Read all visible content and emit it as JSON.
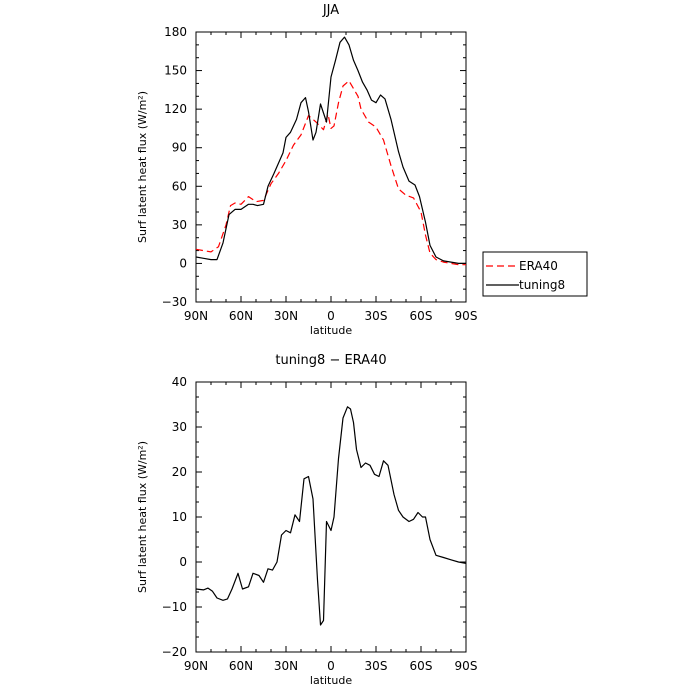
{
  "chart_data": [
    {
      "type": "line",
      "title": "JJA",
      "xlabel": "latitude",
      "ylabel": "Surf latent heat flux (W/m²)",
      "xlim": [
        90,
        -90
      ],
      "ylim": [
        -30,
        180
      ],
      "yticks": [
        -30,
        0,
        30,
        60,
        90,
        120,
        150,
        180
      ],
      "xticks": [
        90,
        60,
        30,
        0,
        -30,
        -60,
        -90
      ],
      "xtick_labels": [
        "90N",
        "60N",
        "30N",
        "0",
        "30S",
        "60S",
        "90S"
      ],
      "legend_position": "right",
      "series": [
        {
          "name": "ERA40",
          "color": "#ff0000",
          "dash": "dashed",
          "x": [
            90,
            85,
            80,
            75,
            70,
            67,
            64,
            60,
            55,
            50,
            45,
            40,
            35,
            30,
            25,
            20,
            15,
            10,
            5,
            2,
            0,
            -2,
            -5,
            -8,
            -12,
            -15,
            -18,
            -20,
            -25,
            -30,
            -35,
            -40,
            -45,
            -50,
            -55,
            -60,
            -63,
            -66,
            -70,
            -75,
            -80,
            -85,
            -90
          ],
          "y": [
            11,
            10,
            9,
            13,
            30,
            45,
            47,
            46,
            52,
            48,
            49,
            62,
            70,
            80,
            92,
            100,
            115,
            110,
            104,
            116,
            105,
            107,
            125,
            138,
            142,
            136,
            130,
            120,
            110,
            106,
            96,
            76,
            58,
            53,
            51,
            40,
            22,
            8,
            3,
            1,
            0,
            -1,
            -1
          ]
        },
        {
          "name": "tuning8",
          "color": "#000000",
          "dash": "solid",
          "x": [
            90,
            85,
            80,
            76,
            72,
            68,
            64,
            60,
            55,
            52,
            49,
            45,
            42,
            38,
            35,
            32,
            30,
            27,
            23,
            20,
            17,
            15,
            12,
            10,
            7,
            3,
            0,
            -3,
            -6,
            -9,
            -12,
            -15,
            -18,
            -21,
            -24,
            -27,
            -30,
            -33,
            -36,
            -40,
            -45,
            -48,
            -52,
            -56,
            -59,
            -63,
            -66,
            -70,
            -75,
            -80,
            -85,
            -90
          ],
          "y": [
            5,
            4,
            3,
            3,
            16,
            38,
            42,
            42,
            46,
            46,
            45,
            46,
            60,
            70,
            78,
            86,
            98,
            102,
            112,
            125,
            129,
            118,
            96,
            102,
            124,
            110,
            145,
            158,
            172,
            176,
            170,
            158,
            150,
            141,
            135,
            127,
            125,
            131,
            128,
            112,
            87,
            75,
            64,
            61,
            52,
            32,
            14,
            5,
            2,
            1,
            0,
            0
          ]
        }
      ]
    },
    {
      "type": "line",
      "title": "tuning8 − ERA40",
      "xlabel": "latitude",
      "ylabel": "Surf latent heat flux (W/m²)",
      "xlim": [
        90,
        -90
      ],
      "ylim": [
        -20,
        40
      ],
      "yticks": [
        -20,
        -10,
        0,
        10,
        20,
        30,
        40
      ],
      "xticks": [
        90,
        60,
        30,
        0,
        -30,
        -60,
        -90
      ],
      "xtick_labels": [
        "90N",
        "60N",
        "30N",
        "0",
        "30S",
        "60S",
        "90S"
      ],
      "series": [
        {
          "name": "",
          "color": "#000000",
          "dash": "solid",
          "x": [
            90,
            85,
            82,
            79,
            76,
            72,
            69,
            66,
            62,
            59,
            55,
            52,
            48,
            45,
            42,
            39,
            36,
            33,
            30,
            27,
            24,
            21,
            18,
            15,
            12,
            9,
            7,
            5,
            3,
            0,
            -2,
            -5,
            -8,
            -11,
            -13,
            -15,
            -17,
            -20,
            -23,
            -26,
            -29,
            -32,
            -35,
            -38,
            -42,
            -45,
            -48,
            -52,
            -55,
            -58,
            -61,
            -63,
            -66,
            -70,
            -75,
            -80,
            -85,
            -90
          ],
          "y": [
            -6,
            -6.2,
            -5.8,
            -6.5,
            -8,
            -8.5,
            -8.2,
            -6,
            -2.5,
            -6,
            -5.5,
            -2.5,
            -3,
            -4.5,
            -1.5,
            -1.8,
            0,
            6,
            7,
            6.5,
            10.5,
            9,
            18.5,
            19,
            14,
            -4,
            -14,
            -13,
            9,
            7,
            10,
            23,
            32,
            34.5,
            34,
            31,
            25,
            21,
            22,
            21.5,
            19.5,
            19,
            22.5,
            21.5,
            15,
            11.5,
            10,
            9,
            9.5,
            11,
            10,
            10,
            5,
            1.5,
            1,
            0.5,
            0,
            -0.3
          ]
        }
      ]
    }
  ]
}
